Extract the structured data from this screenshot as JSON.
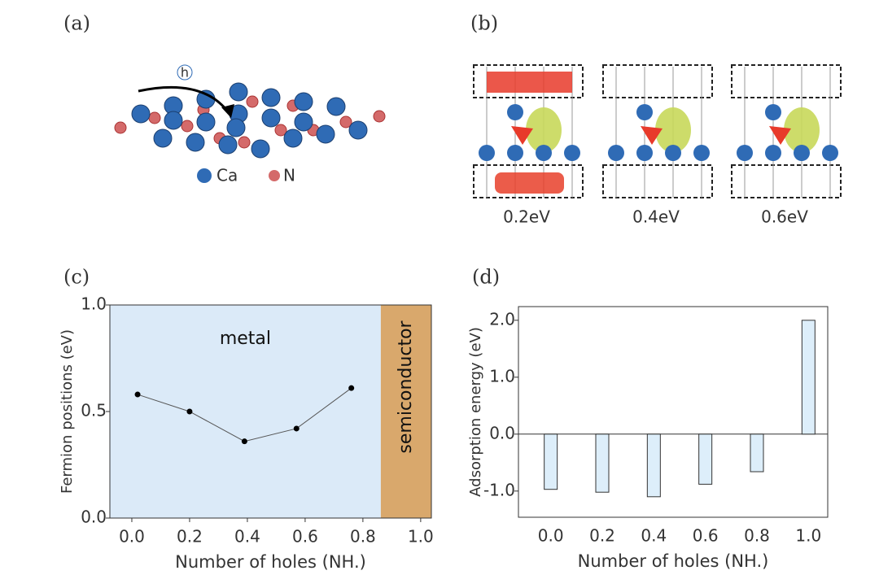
{
  "panel_a": {
    "label": "(a)",
    "hole": "h",
    "legend": [
      "Ca",
      "N"
    ]
  },
  "panel_b": {
    "label": "(b)",
    "captions": [
      "0.2eV",
      "0.4eV",
      "0.6eV"
    ]
  },
  "chart_data": [
    {
      "type": "line",
      "label": "(c)",
      "x_label": "Number of holes (NH.)",
      "y_label": "Fermion positions (eV)",
      "x": [
        0.02,
        0.2,
        0.39,
        0.57,
        0.76
      ],
      "values": [
        0.58,
        0.5,
        0.36,
        0.42,
        0.61
      ],
      "color": "#555555",
      "xlim": [
        -0.076,
        1.037
      ],
      "ylim": [
        0,
        1
      ],
      "xticks": [
        {
          "value": 0,
          "label": "0.0"
        },
        {
          "value": 0.2,
          "label": "0.2"
        },
        {
          "value": 0.4,
          "label": "0.4"
        },
        {
          "value": 0.6,
          "label": "0.6"
        },
        {
          "value": 0.8,
          "label": "0.8"
        },
        {
          "value": 1,
          "label": "1.0"
        }
      ],
      "yticks": [
        {
          "value": 0,
          "label": "0.0"
        },
        {
          "value": 0.5,
          "label": "0.5"
        },
        {
          "value": 1,
          "label": "1.0"
        }
      ],
      "regions": [
        {
          "label": "metal",
          "from": -0.076,
          "to": 0.862,
          "color": "#dbeaf8"
        },
        {
          "label": "semiconductor",
          "from": 0.862,
          "to": 1.037,
          "color": "#d9a86c"
        }
      ]
    },
    {
      "type": "bar",
      "label": "(d)",
      "x_label": "Number of holes (NH.)",
      "y_label": "Adsorption energy (eV)",
      "categories": [
        "0.0",
        "0.2",
        "0.4",
        "0.6",
        "0.8",
        "1.0"
      ],
      "values": [
        -0.97,
        -1.02,
        -1.1,
        -0.88,
        -0.66,
        2.0
      ],
      "color": "#ddeefa",
      "ylim": [
        -1.46,
        2.24
      ],
      "yticks": [
        {
          "value": -1,
          "label": "-1.0"
        },
        {
          "value": 0,
          "label": "0.0"
        },
        {
          "value": 1,
          "label": "1.0"
        },
        {
          "value": 2,
          "label": "2.0"
        }
      ]
    }
  ]
}
